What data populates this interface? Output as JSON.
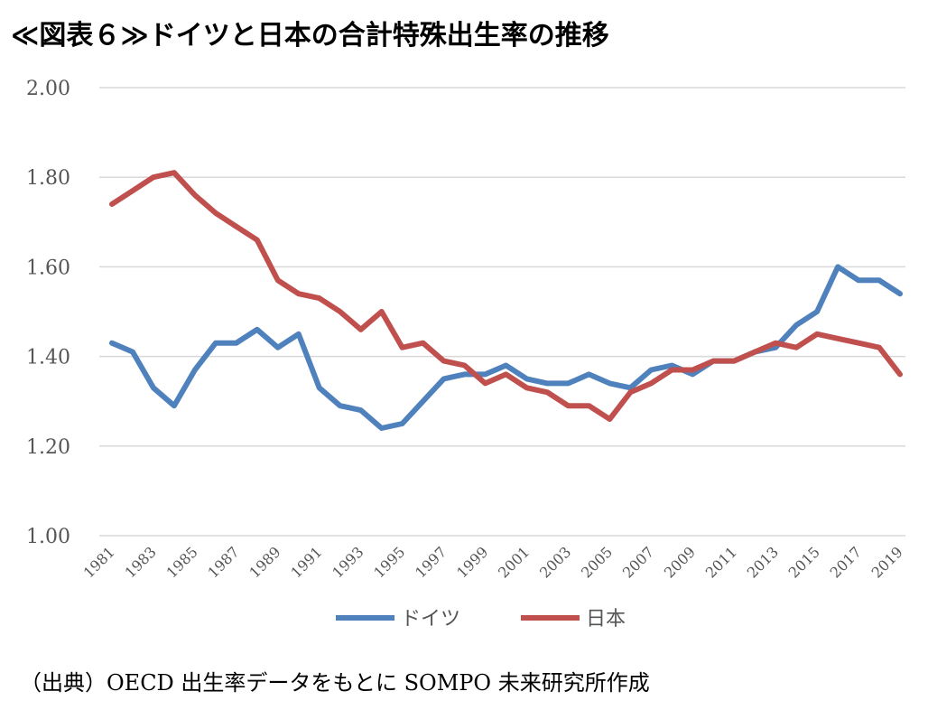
{
  "title": "≪図表６≫ドイツと日本の合計特殊出生率の推移",
  "source": "（出典）OECD 出生率データをもとに SOMPO 未来研究所作成",
  "colors": {
    "germany": "#4f81bd",
    "japan": "#c0504d",
    "grid": "#d9d9d9"
  },
  "chart_data": {
    "type": "line",
    "ylim": [
      1.0,
      2.0
    ],
    "yticks": [
      "1.00",
      "1.20",
      "1.40",
      "1.60",
      "1.80",
      "2.00"
    ],
    "ytick_values": [
      1.0,
      1.2,
      1.4,
      1.6,
      1.8,
      2.0
    ],
    "x": [
      1981,
      1982,
      1983,
      1984,
      1985,
      1986,
      1987,
      1988,
      1989,
      1990,
      1991,
      1992,
      1993,
      1994,
      1995,
      1996,
      1997,
      1998,
      1999,
      2000,
      2001,
      2002,
      2003,
      2004,
      2005,
      2006,
      2007,
      2008,
      2009,
      2010,
      2011,
      2012,
      2013,
      2014,
      2015,
      2016,
      2017,
      2018,
      2019
    ],
    "xtick_labels": [
      "1981",
      "1983",
      "1985",
      "1987",
      "1989",
      "1991",
      "1993",
      "1995",
      "1997",
      "1999",
      "2001",
      "2003",
      "2005",
      "2007",
      "2009",
      "2011",
      "2013",
      "2015",
      "2017",
      "2019"
    ],
    "grid": true,
    "legend_position": "bottom",
    "series": [
      {
        "name": "ドイツ",
        "color": "#4f81bd",
        "values": [
          1.43,
          1.41,
          1.33,
          1.29,
          1.37,
          1.43,
          1.43,
          1.46,
          1.42,
          1.45,
          1.33,
          1.29,
          1.28,
          1.24,
          1.25,
          1.3,
          1.35,
          1.36,
          1.36,
          1.38,
          1.35,
          1.34,
          1.34,
          1.36,
          1.34,
          1.33,
          1.37,
          1.38,
          1.36,
          1.39,
          1.39,
          1.41,
          1.42,
          1.47,
          1.5,
          1.6,
          1.57,
          1.57,
          1.54
        ]
      },
      {
        "name": "日本",
        "color": "#c0504d",
        "values": [
          1.74,
          1.77,
          1.8,
          1.81,
          1.76,
          1.72,
          1.69,
          1.66,
          1.57,
          1.54,
          1.53,
          1.5,
          1.46,
          1.5,
          1.42,
          1.43,
          1.39,
          1.38,
          1.34,
          1.36,
          1.33,
          1.32,
          1.29,
          1.29,
          1.26,
          1.32,
          1.34,
          1.37,
          1.37,
          1.39,
          1.39,
          1.41,
          1.43,
          1.42,
          1.45,
          1.44,
          1.43,
          1.42,
          1.36
        ]
      }
    ]
  }
}
